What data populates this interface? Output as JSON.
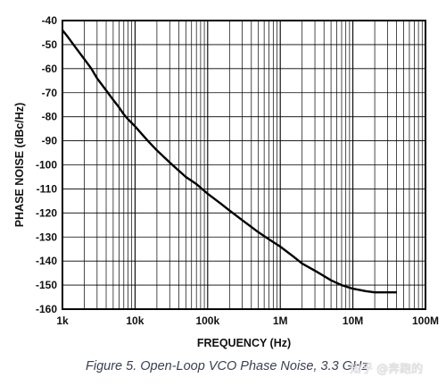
{
  "chart_data": {
    "type": "line",
    "title": "",
    "xlabel": "FREQUENCY (Hz)",
    "ylabel": "PHASE NOISE (dBc/Hz)",
    "xscale": "log",
    "xlim": [
      1000,
      100000000
    ],
    "ylim": [
      -160,
      -40
    ],
    "x_tick_labels": [
      "1k",
      "10k",
      "100k",
      "1M",
      "10M",
      "100M"
    ],
    "y_tick_labels": [
      "-40",
      "-50",
      "-60",
      "-70",
      "-80",
      "-90",
      "-100",
      "-110",
      "-120",
      "-130",
      "-140",
      "-150",
      "-160"
    ],
    "grid": true,
    "series": [
      {
        "x": [
          1000,
          1200,
          1500,
          2000,
          2500,
          3000,
          4000,
          5000,
          6000,
          7000,
          8000,
          10000,
          15000,
          20000,
          30000,
          50000,
          70000,
          100000,
          150000,
          200000,
          300000,
          500000,
          700000,
          1000000,
          1500000,
          2000000,
          3000000,
          5000000,
          7000000,
          10000000,
          15000000,
          20000000,
          30000000,
          40000000
        ],
        "y": [
          -44,
          -47,
          -51,
          -56,
          -60,
          -64,
          -69,
          -73,
          -76,
          -79,
          -81,
          -84,
          -90,
          -94,
          -99,
          -105,
          -108,
          -112,
          -116,
          -119,
          -123,
          -128,
          -131,
          -134,
          -138,
          -141,
          -144,
          -148,
          -150,
          -151.5,
          -152.5,
          -153,
          -153,
          -153
        ]
      }
    ]
  },
  "caption": "Figure 5. Open-Loop VCO Phase Noise, 3.3 GHz",
  "watermark": "知乎 @奔跑的"
}
